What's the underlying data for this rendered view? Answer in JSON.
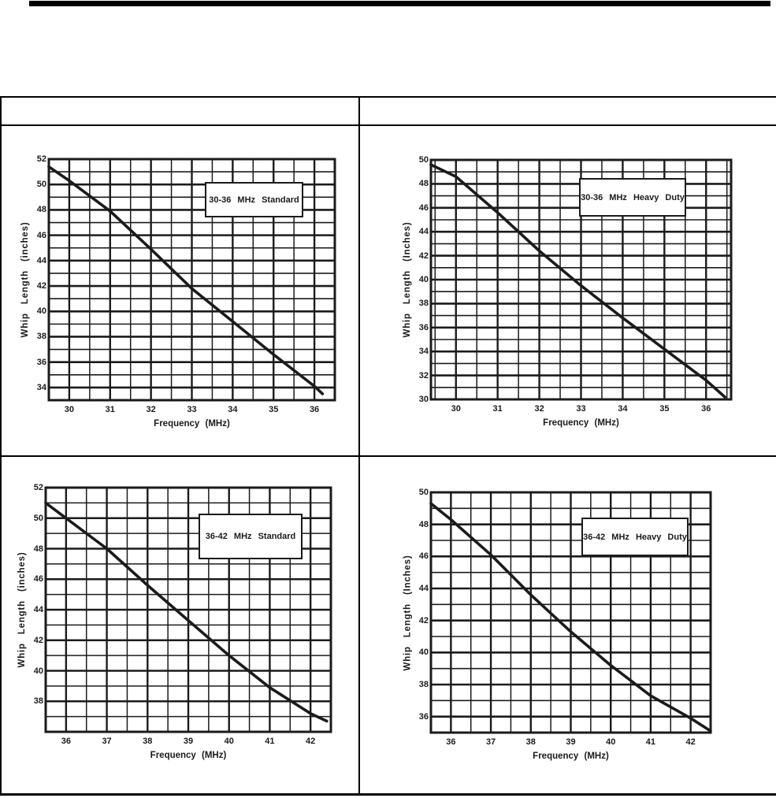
{
  "page": {
    "background": "#ffffff",
    "top_rule_color": "#000000",
    "ink_color": "#1b1b1b"
  },
  "table": {
    "header_cells": [
      "",
      ""
    ]
  },
  "chart_data": [
    {
      "type": "line",
      "title": "30-36 MHz Standard",
      "xlabel": "Frequency (MHz)",
      "ylabel": "Whip Length (inches)",
      "xlim": [
        29.5,
        36.5
      ],
      "ylim": [
        33,
        52
      ],
      "xticks": [
        30,
        31,
        32,
        33,
        34,
        35,
        36
      ],
      "yticks": [
        34,
        36,
        38,
        40,
        42,
        44,
        46,
        48,
        50,
        52
      ],
      "x_minor_step": 0.5,
      "y_minor_step": 1,
      "grid": true,
      "legend": "none",
      "ink": "#1b1b1b",
      "series": [
        {
          "name": "whip-length",
          "points": [
            [
              29.5,
              51.4
            ],
            [
              30,
              50.3
            ],
            [
              31,
              47.9
            ],
            [
              32,
              44.9
            ],
            [
              33,
              41.8
            ],
            [
              34,
              39.2
            ],
            [
              35,
              36.6
            ],
            [
              36,
              34.1
            ],
            [
              36.2,
              33.5
            ]
          ]
        }
      ]
    },
    {
      "type": "line",
      "title": "30-36 MHz Heavy Duty",
      "xlabel": "Frequency (MHz)",
      "ylabel": "Whip Length (Inches)",
      "xlim": [
        29.4,
        36.6
      ],
      "ylim": [
        30,
        50
      ],
      "xticks": [
        30,
        31,
        32,
        33,
        34,
        35,
        36
      ],
      "yticks": [
        30,
        32,
        34,
        36,
        38,
        40,
        42,
        44,
        46,
        48,
        50
      ],
      "x_minor_step": 0.5,
      "y_minor_step": 1,
      "grid": true,
      "legend": "none",
      "ink": "#1b1b1b",
      "series": [
        {
          "name": "whip-length",
          "points": [
            [
              29.4,
              49.6
            ],
            [
              30,
              48.6
            ],
            [
              31,
              45.6
            ],
            [
              32,
              42.4
            ],
            [
              33,
              39.5
            ],
            [
              34,
              36.8
            ],
            [
              35,
              34.2
            ],
            [
              36,
              31.6
            ],
            [
              36.45,
              30.2
            ]
          ]
        }
      ]
    },
    {
      "type": "line",
      "title": "36-42 MHz Standard",
      "xlabel": "Frequency (MHz)",
      "ylabel": "Whip Length (inches)",
      "xlim": [
        35.5,
        42.5
      ],
      "ylim": [
        36,
        52
      ],
      "xticks": [
        36,
        37,
        38,
        39,
        40,
        41,
        42
      ],
      "yticks": [
        38,
        40,
        42,
        44,
        46,
        48,
        50,
        52
      ],
      "x_minor_step": 0.5,
      "y_minor_step": 1,
      "grid": true,
      "legend": "none",
      "ink": "#1b1b1b",
      "series": [
        {
          "name": "whip-length",
          "points": [
            [
              35.5,
              51.0
            ],
            [
              36,
              50.0
            ],
            [
              37,
              48.0
            ],
            [
              38,
              45.6
            ],
            [
              39,
              43.3
            ],
            [
              40,
              41.0
            ],
            [
              41,
              38.9
            ],
            [
              42,
              37.2
            ],
            [
              42.4,
              36.7
            ]
          ]
        }
      ]
    },
    {
      "type": "line",
      "title": "36-42 MHz Heavy Duty",
      "xlabel": "Frequency (MHz)",
      "ylabel": "Whip Length (Inches)",
      "xlim": [
        35.5,
        42.5
      ],
      "ylim": [
        35,
        50
      ],
      "xticks": [
        36,
        37,
        38,
        39,
        40,
        41,
        42
      ],
      "yticks": [
        36,
        38,
        40,
        42,
        44,
        46,
        48,
        50
      ],
      "x_minor_step": 0.5,
      "y_minor_step": 1,
      "grid": true,
      "legend": "none",
      "ink": "#1b1b1b",
      "series": [
        {
          "name": "whip-length",
          "points": [
            [
              35.5,
              49.3
            ],
            [
              36,
              48.3
            ],
            [
              37,
              46.1
            ],
            [
              38,
              43.6
            ],
            [
              39,
              41.3
            ],
            [
              40,
              39.2
            ],
            [
              41,
              37.3
            ],
            [
              42,
              35.9
            ],
            [
              42.5,
              35.1
            ]
          ]
        }
      ]
    }
  ]
}
